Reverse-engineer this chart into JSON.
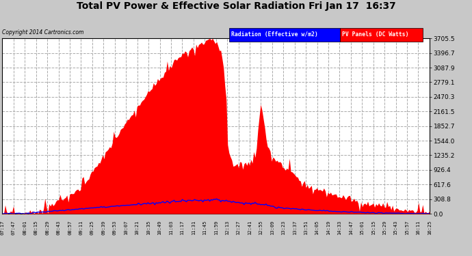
{
  "title": "Total PV Power & Effective Solar Radiation Fri Jan 17  16:37",
  "copyright": "Copyright 2014 Cartronics.com",
  "legend_radiation": "Radiation (Effective w/m2)",
  "legend_pv": "PV Panels (DC Watts)",
  "ylabel_right_ticks": [
    0.0,
    308.8,
    617.6,
    926.4,
    1235.2,
    1544.0,
    1852.7,
    2161.5,
    2470.3,
    2779.1,
    3087.9,
    3396.7,
    3705.5
  ],
  "x_tick_labels": [
    "07:17",
    "07:47",
    "08:01",
    "08:15",
    "08:29",
    "08:43",
    "08:57",
    "09:11",
    "09:25",
    "09:39",
    "09:53",
    "10:07",
    "10:21",
    "10:35",
    "10:49",
    "11:03",
    "11:17",
    "11:31",
    "11:45",
    "11:59",
    "12:13",
    "12:27",
    "12:41",
    "12:55",
    "13:09",
    "13:23",
    "13:37",
    "13:51",
    "14:05",
    "14:19",
    "14:33",
    "14:47",
    "15:01",
    "15:15",
    "15:29",
    "15:43",
    "15:57",
    "16:11",
    "16:25"
  ],
  "background_color": "#c8c8c8",
  "plot_bg_color": "#ffffff",
  "grid_color": "#aaaaaa",
  "title_color": "#000000",
  "pv_fill_color": "#ff0000",
  "radiation_line_color": "#0000ff",
  "ylim_max": 3705.5,
  "ylim_min": 0.0
}
